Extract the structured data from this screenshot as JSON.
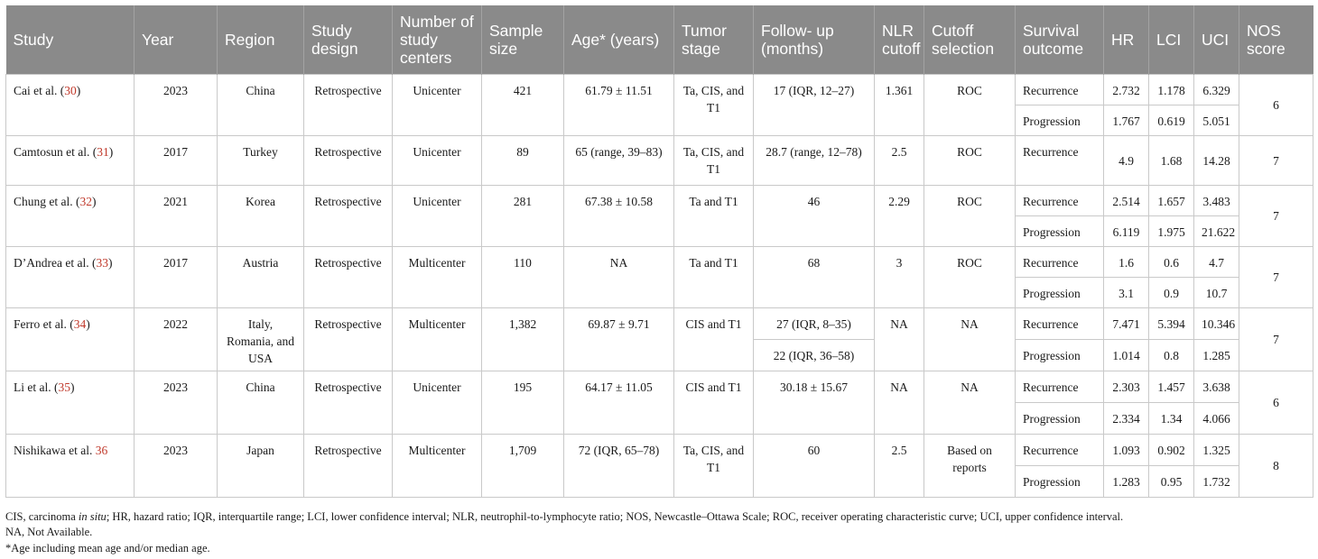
{
  "headers": {
    "study": "Study",
    "year": "Year",
    "region": "Region",
    "design": "Study design",
    "centers": "Number of study centers",
    "sample": "Sample size",
    "age": "Age* (years)",
    "stage": "Tumor stage",
    "followup": "Follow- up (months)",
    "nlr": "NLR cutoff",
    "cutoff": "Cutoff selection",
    "outcome": "Survival outcome",
    "hr": "HR",
    "lci": "LCI",
    "uci": "UCI",
    "nos": "NOS score"
  },
  "rows": {
    "cai": {
      "author": "Cai et al. (",
      "ref": "30",
      "close": ")",
      "year": "2023",
      "region": "China",
      "design": "Retrospective",
      "centers": "Unicenter",
      "sample": "421",
      "age": "61.79 ± 11.51",
      "stage": "Ta, CIS, and T1",
      "followup": "17 (IQR, 12–27)",
      "nlr": "1.361",
      "cutoff": "ROC",
      "nos": "6",
      "o1": {
        "outcome": "Recurrence",
        "hr": "2.732",
        "lci": "1.178",
        "uci": "6.329"
      },
      "o2": {
        "outcome": "Progression",
        "hr": "1.767",
        "lci": "0.619",
        "uci": "5.051"
      }
    },
    "camtosun": {
      "author": "Camtosun et al. (",
      "ref": "31",
      "close": ")",
      "year": "2017",
      "region": "Turkey",
      "design": "Retrospective",
      "centers": "Unicenter",
      "sample": "89",
      "age": "65 (range, 39–83)",
      "stage": "Ta, CIS, and T1",
      "followup": "28.7 (range, 12–78)",
      "nlr": "2.5",
      "cutoff": "ROC",
      "nos": "7",
      "o1": {
        "outcome": "Recurrence",
        "hr": "4.9",
        "lci": "1.68",
        "uci": "14.28"
      }
    },
    "chung": {
      "author": "Chung et al. (",
      "ref": "32",
      "close": ")",
      "year": "2021",
      "region": "Korea",
      "design": "Retrospective",
      "centers": "Unicenter",
      "sample": "281",
      "age": "67.38 ± 10.58",
      "stage": "Ta and T1",
      "followup": "46",
      "nlr": "2.29",
      "cutoff": "ROC",
      "nos": "7",
      "o1": {
        "outcome": "Recurrence",
        "hr": "2.514",
        "lci": "1.657",
        "uci": "3.483"
      },
      "o2": {
        "outcome": "Progression",
        "hr": "6.119",
        "lci": "1.975",
        "uci": "21.622"
      }
    },
    "dandrea": {
      "author": "D’Andrea et al. (",
      "ref": "33",
      "close": ")",
      "year": "2017",
      "region": "Austria",
      "design": "Retrospective",
      "centers": "Multicenter",
      "sample": "110",
      "age": "NA",
      "stage": "Ta and T1",
      "followup": "68",
      "nlr": "3",
      "cutoff": "ROC",
      "nos": "7",
      "o1": {
        "outcome": "Recurrence",
        "hr": "1.6",
        "lci": "0.6",
        "uci": "4.7"
      },
      "o2": {
        "outcome": "Progression",
        "hr": "3.1",
        "lci": "0.9",
        "uci": "10.7"
      }
    },
    "ferro": {
      "author": "Ferro et al. (",
      "ref": "34",
      "close": ")",
      "year": "2022",
      "region": "Italy, Romania, and USA",
      "design": "Retrospective",
      "centers": "Multicenter",
      "sample": "1,382",
      "age": "69.87 ± 9.71",
      "stage": "CIS and T1",
      "followup1": "27 (IQR, 8–35)",
      "followup2": "22 (IQR, 36–58)",
      "nlr": "NA",
      "cutoff": "NA",
      "nos": "7",
      "o1": {
        "outcome": "Recurrence",
        "hr": "7.471",
        "lci": "5.394",
        "uci": "10.346"
      },
      "o2": {
        "outcome": "Progression",
        "hr": "1.014",
        "lci": "0.8",
        "uci": "1.285"
      }
    },
    "li": {
      "author": "Li et al. (",
      "ref": "35",
      "close": ")",
      "year": "2023",
      "region": "China",
      "design": "Retrospective",
      "centers": "Unicenter",
      "sample": "195",
      "age": "64.17 ± 11.05",
      "stage": "CIS and T1",
      "followup": "30.18 ± 15.67",
      "nlr": "NA",
      "cutoff": "NA",
      "nos": "6",
      "o1": {
        "outcome": "Recurrence",
        "hr": "2.303",
        "lci": "1.457",
        "uci": "3.638"
      },
      "o2": {
        "outcome": "Progression",
        "hr": "2.334",
        "lci": "1.34",
        "uci": "4.066"
      }
    },
    "nishikawa": {
      "author": "Nishikawa et al. ",
      "ref": "36",
      "close": "",
      "year": "2023",
      "region": "Japan",
      "design": "Retrospective",
      "centers": "Multicenter",
      "sample": "1,709",
      "age": "72 (IQR, 65–78)",
      "stage": "Ta, CIS, and T1",
      "followup": "60",
      "nlr": "2.5",
      "cutoff": "Based on reports",
      "nos": "8",
      "o1": {
        "outcome": "Recurrence",
        "hr": "1.093",
        "lci": "0.902",
        "uci": "1.325"
      },
      "o2": {
        "outcome": "Progression",
        "hr": "1.283",
        "lci": "0.95",
        "uci": "1.732"
      }
    }
  },
  "footnotes": {
    "abbr_a": "CIS, carcinoma ",
    "abbr_italic": "in situ",
    "abbr_b": "; HR, hazard ratio; IQR, interquartile range; LCI, lower confidence interval; NLR, neutrophil-to-lymphocyte ratio; NOS, Newcastle–Ottawa Scale; ROC, receiver operating characteristic curve; UCI, upper confidence interval.",
    "na": "NA, Not Available.",
    "age": "*Age including mean age and/or median age."
  }
}
